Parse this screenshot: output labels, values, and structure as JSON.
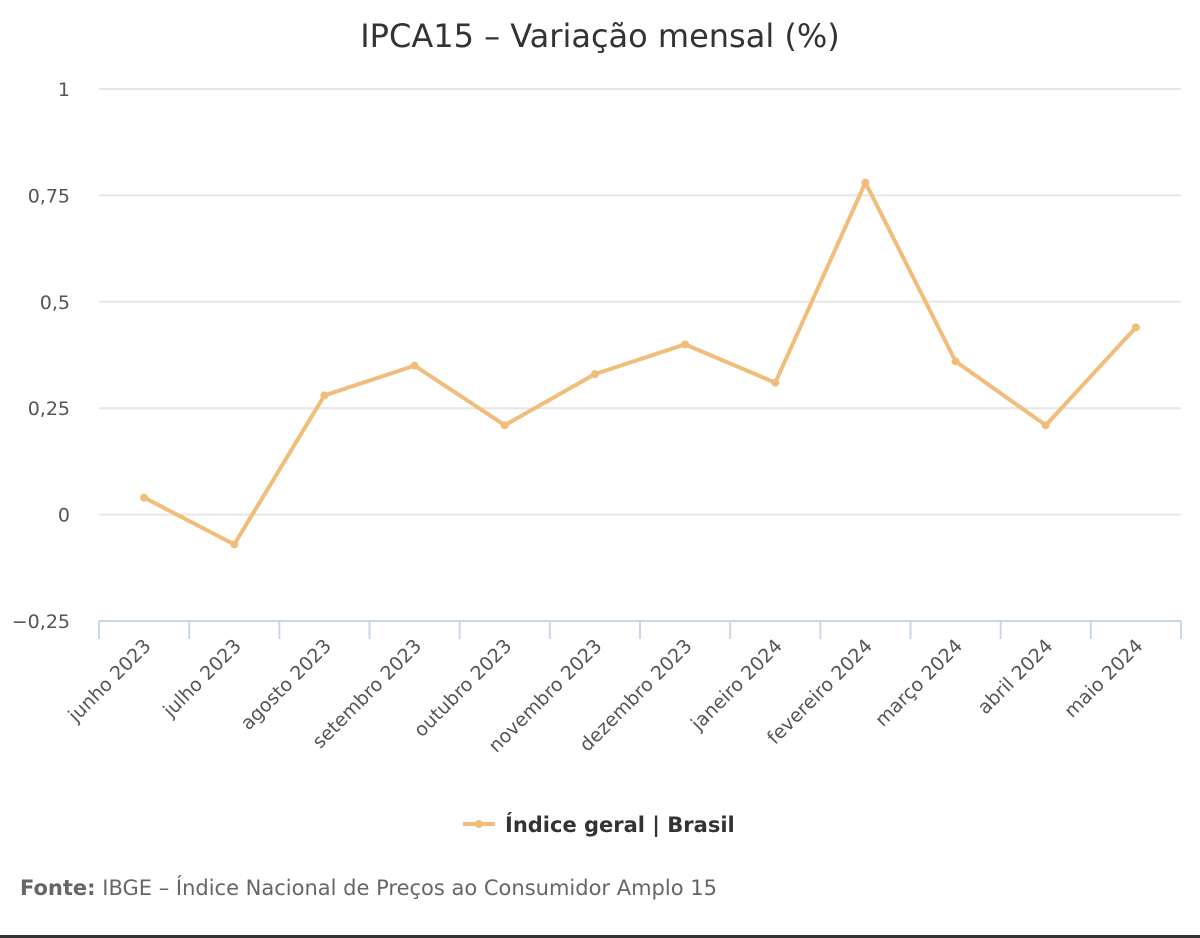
{
  "chart_data": {
    "type": "line",
    "title": "IPCA15 – Variação mensal (%)",
    "categories": [
      "junho 2023",
      "julho 2023",
      "agosto 2023",
      "setembro 2023",
      "outubro 2023",
      "novembro 2023",
      "dezembro 2023",
      "janeiro 2024",
      "fevereiro 2024",
      "março 2024",
      "abril 2024",
      "maio 2024"
    ],
    "series": [
      {
        "name": "Índice geral | Brasil",
        "values": [
          0.04,
          -0.07,
          0.28,
          0.35,
          0.21,
          0.33,
          0.4,
          0.31,
          0.78,
          0.36,
          0.21,
          0.44
        ],
        "color": "#F0BD7A"
      }
    ],
    "ylim": [
      -0.25,
      1
    ],
    "yticks": [
      1,
      0.75,
      0.5,
      0.25,
      0,
      -0.25
    ],
    "ytick_labels": [
      "1",
      "0,75",
      "0,5",
      "0,25",
      "0",
      "−0,25"
    ],
    "grid": true,
    "legend": "bottom-center",
    "xlabel": "",
    "ylabel": ""
  },
  "source": {
    "label": "Fonte:",
    "text": "IBGE – Índice Nacional de Preços ao Consumidor Amplo 15"
  },
  "colors": {
    "line": "#F0BD7A",
    "grid": "#E6E6E6",
    "axis": "#CCD6EB"
  }
}
